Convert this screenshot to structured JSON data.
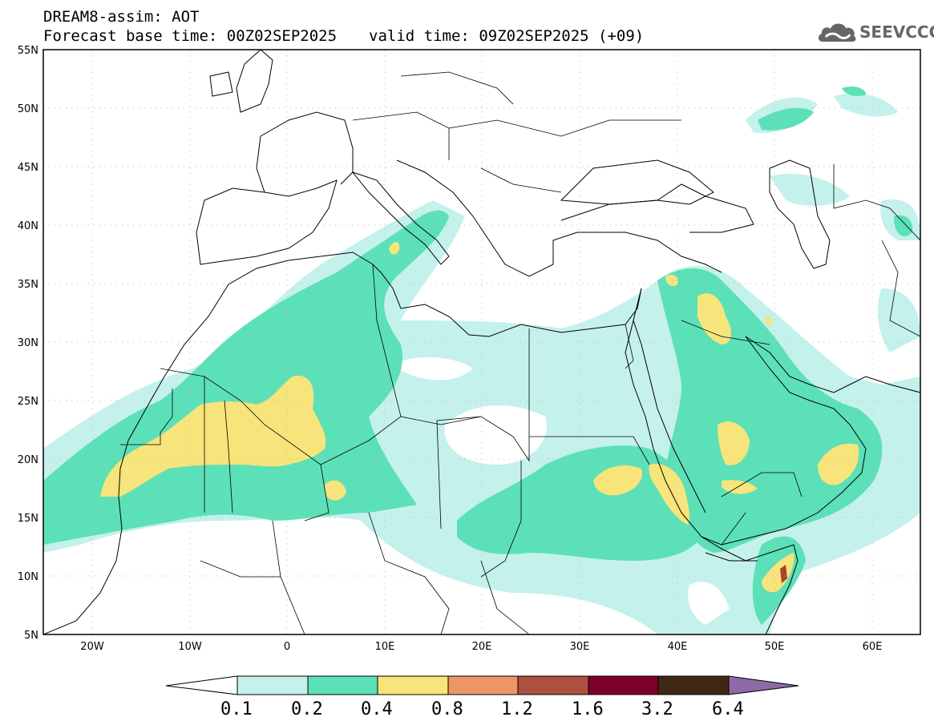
{
  "header": {
    "model": "DREAM8-assim: AOT",
    "base_time": "Forecast base time: 00Z02SEP2025",
    "valid_time": "valid time: 09Z02SEP2025 (+09)"
  },
  "logo": {
    "text": "SEEVCCC",
    "icon": "cloud-icon"
  },
  "map": {
    "lon_range": [
      -25,
      65
    ],
    "lat_range": [
      5,
      55
    ],
    "lat_labels": [
      "55N",
      "50N",
      "45N",
      "40N",
      "35N",
      "30N",
      "25N",
      "20N",
      "15N",
      "10N",
      "5N"
    ],
    "lon_labels": [
      "20W",
      "10W",
      "0",
      "10E",
      "20E",
      "30E",
      "40E",
      "50E",
      "60E"
    ]
  },
  "colorbar": {
    "labels": [
      "0.1",
      "0.2",
      "0.4",
      "0.8",
      "1.2",
      "1.6",
      "3.2",
      "6.4"
    ],
    "colors": [
      "#ffffff",
      "#c4f1eb",
      "#5ce0b8",
      "#f7e47a",
      "#ee9568",
      "#ae5040",
      "#7d0028",
      "#3f2714",
      "#8d6aa8"
    ]
  },
  "colors": {
    "c1": "#c4f1eb",
    "c2": "#5ce0b8",
    "c3": "#f7e47a",
    "c4": "#a8422f",
    "border": "#000000",
    "grid": "#bbbbbb"
  }
}
